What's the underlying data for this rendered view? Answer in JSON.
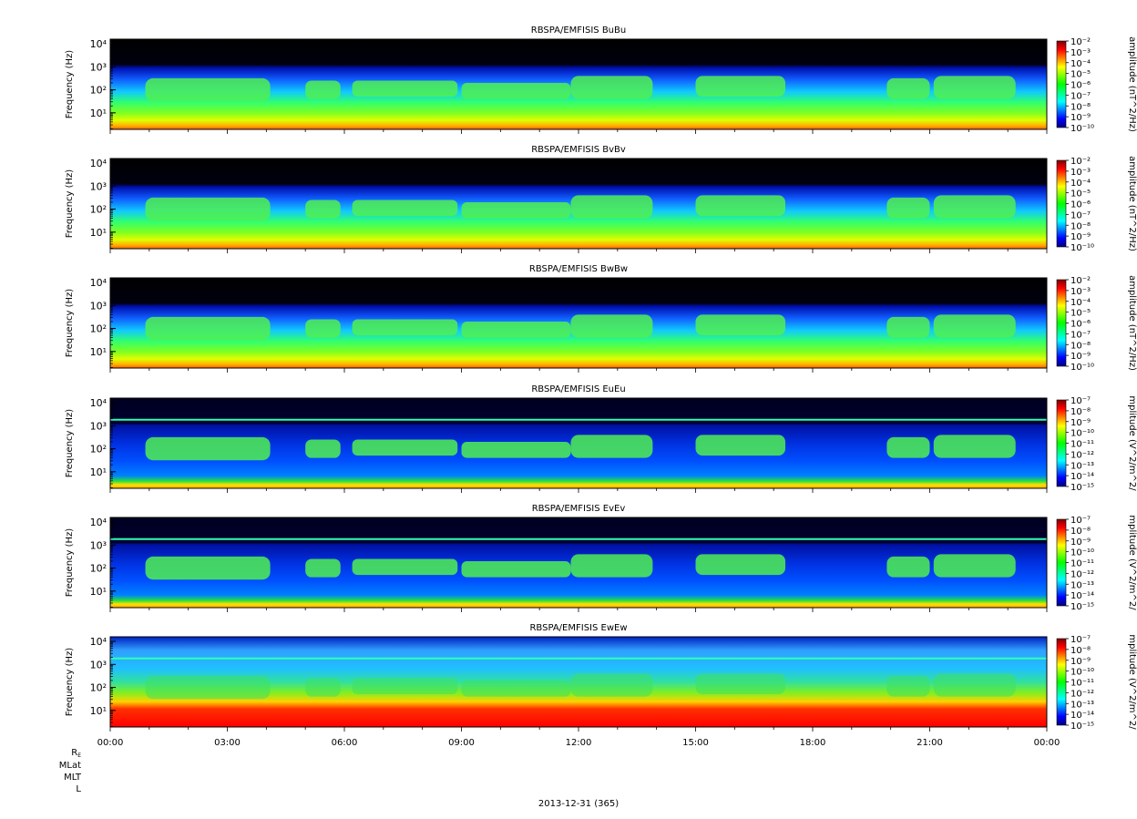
{
  "chart_data": {
    "type": "heatmap",
    "panels": [
      {
        "title": "RBSPA/EMFISIS  BuBu",
        "ylabel": "Frequency (Hz)",
        "yscale": "log",
        "yticks": [
          "10¹",
          "10²",
          "10³",
          "10⁴"
        ],
        "colorbar_label": "amplitude (nT^2/Hz)",
        "colorbar_scale": "log",
        "colorbar_ticks": [
          "10⁻²",
          "10⁻³",
          "10⁻⁴",
          "10⁻⁵",
          "10⁻⁶",
          "10⁻⁷",
          "10⁻⁸",
          "10⁻⁹",
          "10⁻¹⁰"
        ],
        "colorbar_range": [
          1e-10,
          0.01
        ]
      },
      {
        "title": "RBSPA/EMFISIS  BvBv",
        "ylabel": "Frequency (Hz)",
        "yscale": "log",
        "yticks": [
          "10¹",
          "10²",
          "10³",
          "10⁴"
        ],
        "colorbar_label": "amplitude (nT^2/Hz)",
        "colorbar_scale": "log",
        "colorbar_ticks": [
          "10⁻²",
          "10⁻³",
          "10⁻⁴",
          "10⁻⁵",
          "10⁻⁶",
          "10⁻⁷",
          "10⁻⁸",
          "10⁻⁹",
          "10⁻¹⁰"
        ],
        "colorbar_range": [
          1e-10,
          0.01
        ]
      },
      {
        "title": "RBSPA/EMFISIS  BwBw",
        "ylabel": "Frequency (Hz)",
        "yscale": "log",
        "yticks": [
          "10¹",
          "10²",
          "10³",
          "10⁴"
        ],
        "colorbar_label": "amplitude (nT^2/Hz)",
        "colorbar_scale": "log",
        "colorbar_ticks": [
          "10⁻²",
          "10⁻³",
          "10⁻⁴",
          "10⁻⁵",
          "10⁻⁶",
          "10⁻⁷",
          "10⁻⁸",
          "10⁻⁹",
          "10⁻¹⁰"
        ],
        "colorbar_range": [
          1e-10,
          0.01
        ]
      },
      {
        "title": "RBSPA/EMFISIS  EuEu",
        "ylabel": "Frequency (Hz)",
        "yscale": "log",
        "yticks": [
          "10¹",
          "10²",
          "10³",
          "10⁴"
        ],
        "colorbar_label": "mplitude (V^2/m^2/",
        "colorbar_scale": "log",
        "colorbar_ticks": [
          "10⁻⁷",
          "10⁻⁸",
          "10⁻⁹",
          "10⁻¹⁰",
          "10⁻¹¹",
          "10⁻¹²",
          "10⁻¹³",
          "10⁻¹⁴",
          "10⁻¹⁵"
        ],
        "colorbar_range": [
          1e-15,
          1e-07
        ]
      },
      {
        "title": "RBSPA/EMFISIS  EvEv",
        "ylabel": "Frequency (Hz)",
        "yscale": "log",
        "yticks": [
          "10¹",
          "10²",
          "10³",
          "10⁴"
        ],
        "colorbar_label": "mplitude (V^2/m^2/",
        "colorbar_scale": "log",
        "colorbar_ticks": [
          "10⁻⁷",
          "10⁻⁸",
          "10⁻⁹",
          "10⁻¹⁰",
          "10⁻¹¹",
          "10⁻¹²",
          "10⁻¹³",
          "10⁻¹⁴",
          "10⁻¹⁵"
        ],
        "colorbar_range": [
          1e-15,
          1e-07
        ]
      },
      {
        "title": "RBSPA/EMFISIS  EwEw",
        "ylabel": "Frequency (Hz)",
        "yscale": "log",
        "yticks": [
          "10¹",
          "10²",
          "10³",
          "10⁴"
        ],
        "colorbar_label": "mplitude (V^2/m^2/",
        "colorbar_scale": "log",
        "colorbar_ticks": [
          "10⁻⁷",
          "10⁻⁸",
          "10⁻⁹",
          "10⁻¹⁰",
          "10⁻¹¹",
          "10⁻¹²",
          "10⁻¹³",
          "10⁻¹⁴",
          "10⁻¹⁵"
        ],
        "colorbar_range": [
          1e-15,
          1e-07
        ]
      }
    ],
    "xaxis": {
      "ticks": [
        "00:00",
        "03:00",
        "06:00",
        "09:00",
        "12:00",
        "15:00",
        "18:00",
        "21:00",
        "00:00"
      ],
      "range_hours": [
        0,
        24
      ]
    },
    "ephemeris_labels": [
      "R",
      "MLat",
      "MLT",
      "L"
    ],
    "re_subscript": "E",
    "date_label": "2013-12-31 (365)",
    "colormap": [
      "#7f0000",
      "#ff0000",
      "#ff8000",
      "#ffff00",
      "#80ff00",
      "#00ff00",
      "#00ff80",
      "#00ffff",
      "#0080ff",
      "#0000ff",
      "#000080"
    ]
  }
}
